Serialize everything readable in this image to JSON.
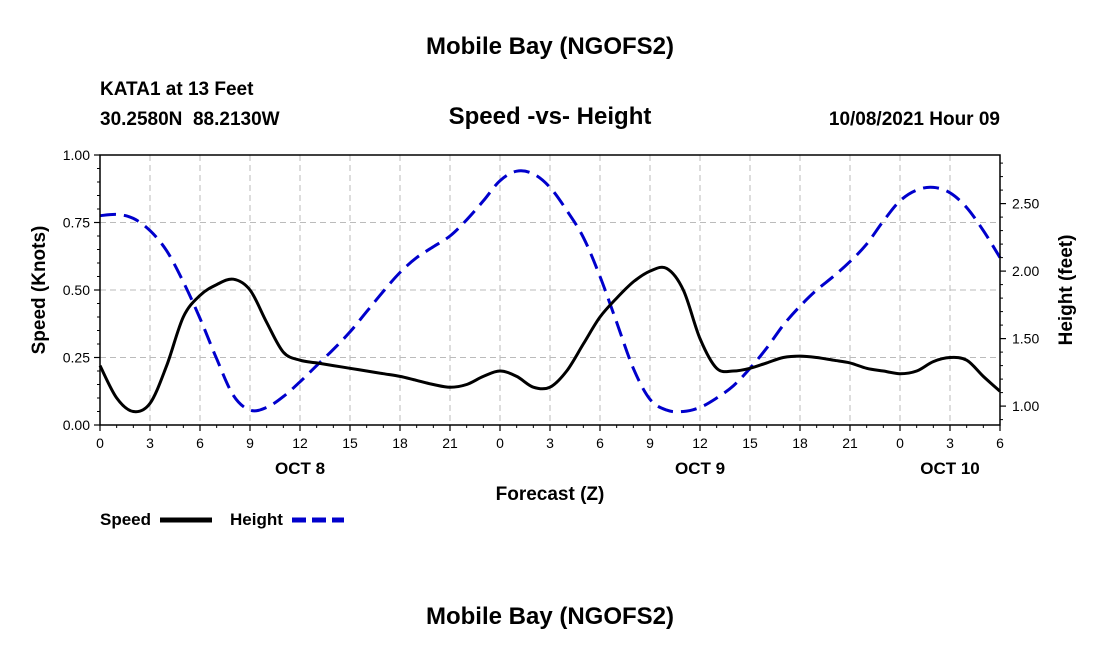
{
  "header": {
    "title": "Mobile Bay (NGOFS2)",
    "station": "KATA1 at 13 Feet",
    "coords": "30.2580N  88.2130W",
    "subtitle": "Speed -vs- Height",
    "datetime": "10/08/2021 Hour 09"
  },
  "footer": {
    "title": "Mobile Bay (NGOFS2)"
  },
  "legend": {
    "speed_label": "Speed",
    "height_label": "Height"
  },
  "colors": {
    "speed": "#000000",
    "height": "#0000cc",
    "grid": "#bbbbbb"
  },
  "chart_data": {
    "type": "line",
    "title": "Speed -vs- Height",
    "xlabel": "Forecast (Z)",
    "ylabel": "Speed (Knots)",
    "y2label": "Height (feet)",
    "xlim": [
      0,
      54
    ],
    "ylim": [
      0,
      1
    ],
    "y2lim": [
      0.86,
      2.86
    ],
    "x_ticks": [
      0,
      3,
      6,
      9,
      12,
      15,
      18,
      21,
      24,
      27,
      30,
      33,
      36,
      39,
      42,
      45,
      48,
      51,
      54
    ],
    "x_tick_labels": [
      "0",
      "3",
      "6",
      "9",
      "12",
      "15",
      "18",
      "21",
      "0",
      "3",
      "6",
      "9",
      "12",
      "15",
      "18",
      "21",
      "0",
      "3",
      "6"
    ],
    "day_labels": [
      {
        "x": 12,
        "label": "OCT 8"
      },
      {
        "x": 36,
        "label": "OCT 9"
      },
      {
        "x": 51,
        "label": "OCT 10"
      }
    ],
    "y_ticks": [
      0,
      0.25,
      0.5,
      0.75,
      1.0
    ],
    "y_tick_labels": [
      "0.00",
      "0.25",
      "0.50",
      "0.75",
      "1.00"
    ],
    "y2_ticks": [
      1.0,
      1.5,
      2.0,
      2.5
    ],
    "y2_tick_labels": [
      "1.00",
      "1.50",
      "2.00",
      "2.50"
    ],
    "grid": true,
    "series": [
      {
        "name": "Speed",
        "axis": "left",
        "x": [
          0,
          1,
          2,
          3,
          4,
          5,
          6,
          7,
          8,
          9,
          10,
          11,
          12,
          13,
          14,
          15,
          16,
          17,
          18,
          19,
          20,
          21,
          22,
          23,
          24,
          25,
          26,
          27,
          28,
          29,
          30,
          31,
          32,
          33,
          34,
          35,
          36,
          37,
          38,
          39,
          40,
          41,
          42,
          43,
          44,
          45,
          46,
          47,
          48,
          49,
          50,
          51,
          52,
          53,
          54
        ],
        "values": [
          0.22,
          0.1,
          0.05,
          0.08,
          0.22,
          0.4,
          0.48,
          0.52,
          0.54,
          0.5,
          0.38,
          0.27,
          0.24,
          0.23,
          0.22,
          0.21,
          0.2,
          0.19,
          0.18,
          0.165,
          0.15,
          0.14,
          0.15,
          0.18,
          0.2,
          0.18,
          0.14,
          0.14,
          0.2,
          0.3,
          0.4,
          0.47,
          0.53,
          0.57,
          0.58,
          0.5,
          0.32,
          0.21,
          0.2,
          0.21,
          0.23,
          0.25,
          0.255,
          0.25,
          0.24,
          0.23,
          0.21,
          0.2,
          0.19,
          0.2,
          0.235,
          0.25,
          0.24,
          0.18,
          0.125
        ]
      },
      {
        "name": "Height",
        "axis": "right",
        "x": [
          0,
          1,
          2,
          3,
          4,
          5,
          6,
          7,
          8,
          9,
          10,
          11,
          12,
          13,
          14,
          15,
          16,
          17,
          18,
          19,
          20,
          21,
          22,
          23,
          24,
          25,
          26,
          27,
          28,
          29,
          30,
          31,
          32,
          33,
          34,
          35,
          36,
          37,
          38,
          39,
          40,
          41,
          42,
          43,
          44,
          45,
          46,
          47,
          48,
          49,
          50,
          51,
          52,
          53,
          54
        ],
        "values": [
          2.41,
          2.42,
          2.39,
          2.3,
          2.15,
          1.92,
          1.65,
          1.35,
          1.08,
          0.97,
          0.99,
          1.07,
          1.18,
          1.3,
          1.42,
          1.55,
          1.7,
          1.85,
          1.99,
          2.1,
          2.18,
          2.26,
          2.38,
          2.52,
          2.67,
          2.74,
          2.72,
          2.62,
          2.45,
          2.25,
          1.96,
          1.62,
          1.28,
          1.05,
          0.97,
          0.96,
          0.99,
          1.06,
          1.15,
          1.28,
          1.43,
          1.6,
          1.74,
          1.86,
          1.96,
          2.07,
          2.2,
          2.37,
          2.52,
          2.6,
          2.62,
          2.58,
          2.47,
          2.3,
          2.1
        ]
      }
    ]
  }
}
